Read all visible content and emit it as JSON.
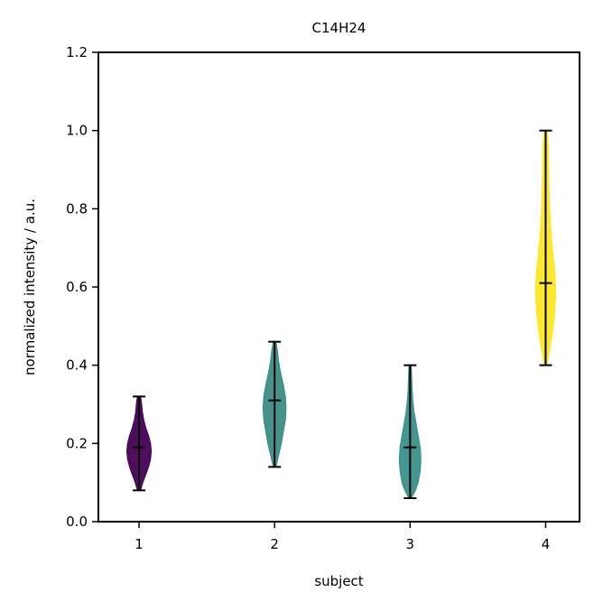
{
  "chart_data": {
    "type": "violin",
    "title": "C14H24",
    "xlabel": "subject",
    "ylabel": "normalized intensity / a.u.",
    "categories": [
      "1",
      "2",
      "3",
      "4"
    ],
    "ylim": [
      0.0,
      1.2
    ],
    "xlim": [
      0.7,
      4.25
    ],
    "yticks": [
      "0.0",
      "0.2",
      "0.4",
      "0.6",
      "0.8",
      "1.0",
      "1.2"
    ],
    "grid": false,
    "violins": [
      {
        "x": 1,
        "color": "#440154",
        "min": 0.08,
        "max": 0.32,
        "median": 0.19,
        "profile": [
          [
            0.08,
            0.012
          ],
          [
            0.1,
            0.028
          ],
          [
            0.12,
            0.05
          ],
          [
            0.14,
            0.07
          ],
          [
            0.16,
            0.085
          ],
          [
            0.18,
            0.09
          ],
          [
            0.2,
            0.085
          ],
          [
            0.22,
            0.07
          ],
          [
            0.24,
            0.05
          ],
          [
            0.26,
            0.035
          ],
          [
            0.28,
            0.025
          ],
          [
            0.3,
            0.02
          ],
          [
            0.32,
            0.012
          ]
        ]
      },
      {
        "x": 2,
        "color": "#3b8c85",
        "min": 0.14,
        "max": 0.46,
        "median": 0.31,
        "profile": [
          [
            0.14,
            0.01
          ],
          [
            0.17,
            0.03
          ],
          [
            0.2,
            0.05
          ],
          [
            0.23,
            0.065
          ],
          [
            0.26,
            0.08
          ],
          [
            0.29,
            0.085
          ],
          [
            0.32,
            0.08
          ],
          [
            0.35,
            0.065
          ],
          [
            0.38,
            0.045
          ],
          [
            0.41,
            0.03
          ],
          [
            0.44,
            0.02
          ],
          [
            0.46,
            0.01
          ]
        ]
      },
      {
        "x": 3,
        "color": "#3a918a",
        "min": 0.06,
        "max": 0.4,
        "median": 0.19,
        "profile": [
          [
            0.06,
            0.01
          ],
          [
            0.08,
            0.04
          ],
          [
            0.1,
            0.06
          ],
          [
            0.13,
            0.075
          ],
          [
            0.16,
            0.08
          ],
          [
            0.19,
            0.075
          ],
          [
            0.22,
            0.06
          ],
          [
            0.25,
            0.045
          ],
          [
            0.28,
            0.03
          ],
          [
            0.31,
            0.02
          ],
          [
            0.34,
            0.015
          ],
          [
            0.37,
            0.012
          ],
          [
            0.4,
            0.008
          ]
        ]
      },
      {
        "x": 4,
        "color": "#fde725",
        "min": 0.4,
        "max": 1.0,
        "median": 0.61,
        "profile": [
          [
            0.4,
            0.01
          ],
          [
            0.44,
            0.03
          ],
          [
            0.48,
            0.05
          ],
          [
            0.53,
            0.065
          ],
          [
            0.58,
            0.075
          ],
          [
            0.63,
            0.07
          ],
          [
            0.68,
            0.055
          ],
          [
            0.74,
            0.04
          ],
          [
            0.8,
            0.03
          ],
          [
            0.86,
            0.025
          ],
          [
            0.92,
            0.022
          ],
          [
            0.96,
            0.02
          ],
          [
            1.0,
            0.01
          ]
        ]
      }
    ]
  }
}
